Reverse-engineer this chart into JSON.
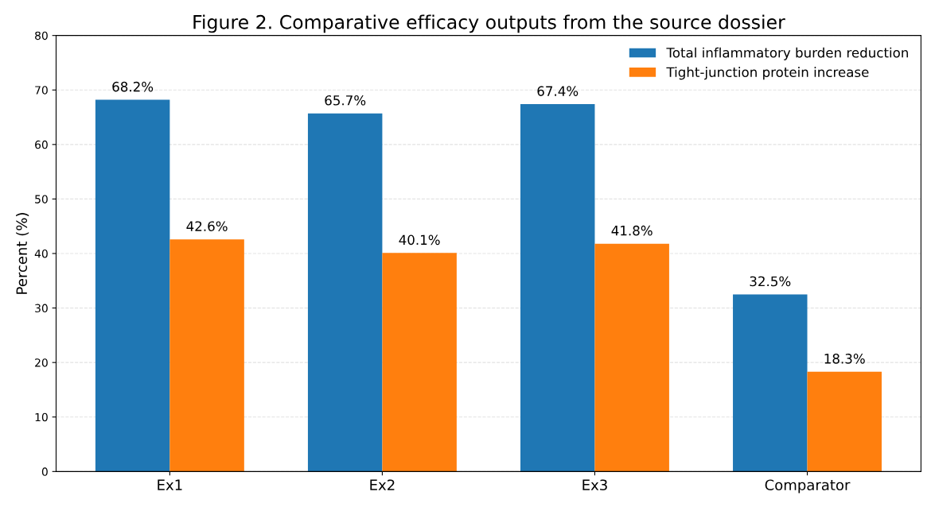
{
  "chart_data": {
    "type": "bar",
    "title": "Figure 2. Comparative efficacy outputs from the source dossier",
    "ylabel": "Percent (%)",
    "categories": [
      "Ex1",
      "Ex2",
      "Ex3",
      "Comparator"
    ],
    "series": [
      {
        "name": "Total inflammatory burden reduction",
        "color": "#1f77b4",
        "values": [
          68.2,
          65.7,
          67.4,
          32.5
        ],
        "value_labels": [
          "68.2%",
          "65.7%",
          "67.4%",
          "32.5%"
        ]
      },
      {
        "name": "Tight-junction protein increase",
        "color": "#ff7f0e",
        "values": [
          42.6,
          40.1,
          41.8,
          18.3
        ],
        "value_labels": [
          "42.6%",
          "40.1%",
          "41.8%",
          "18.3%"
        ]
      }
    ],
    "ylim": [
      0,
      80
    ],
    "yticks": [
      0,
      10,
      20,
      30,
      40,
      50,
      60,
      70,
      80
    ],
    "grid": "y",
    "legend": "top right"
  }
}
